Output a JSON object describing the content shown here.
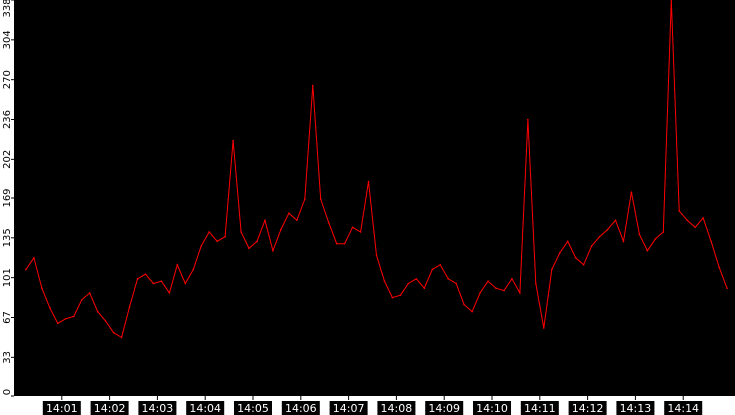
{
  "chart_data": {
    "type": "line",
    "title": "",
    "xlabel": "",
    "ylabel": "",
    "ylim": [
      0,
      338
    ],
    "yticks": [
      "0",
      "33",
      "67",
      "101",
      "135",
      "169",
      "202",
      "236",
      "270",
      "304",
      "338"
    ],
    "xticks": [
      "14:01",
      "14:02",
      "14:03",
      "14:04",
      "14:05",
      "14:06",
      "14:07",
      "14:08",
      "14:09",
      "14:10",
      "14:11",
      "14:12",
      "14:13",
      "14:14"
    ],
    "grid": false,
    "colors": {
      "background": "#ffffff",
      "axis_bg": "#000000",
      "line": "#ff0000"
    },
    "series": [
      {
        "x": [
          "14:00:15",
          "14:00:25",
          "14:00:35",
          "14:00:45",
          "14:00:55",
          "14:01:05",
          "14:01:15",
          "14:01:25",
          "14:01:35",
          "14:01:45",
          "14:01:55",
          "14:02:05",
          "14:02:15",
          "14:02:25",
          "14:02:35",
          "14:02:45",
          "14:02:55",
          "14:03:05",
          "14:03:15",
          "14:03:25",
          "14:03:35",
          "14:03:45",
          "14:03:55",
          "14:04:05",
          "14:04:15",
          "14:04:25",
          "14:04:35",
          "14:04:45",
          "14:04:55",
          "14:05:05",
          "14:05:15",
          "14:05:25",
          "14:05:35",
          "14:05:45",
          "14:05:55",
          "14:06:05",
          "14:06:15",
          "14:06:25",
          "14:06:35",
          "14:06:45",
          "14:06:55",
          "14:07:05",
          "14:07:15",
          "14:07:25",
          "14:07:35",
          "14:07:45",
          "14:07:55",
          "14:08:05",
          "14:08:15",
          "14:08:25",
          "14:08:35",
          "14:08:45",
          "14:08:55",
          "14:09:05",
          "14:09:15",
          "14:09:25",
          "14:09:35",
          "14:09:45",
          "14:09:55",
          "14:10:05",
          "14:10:15",
          "14:10:25",
          "14:10:35",
          "14:10:45",
          "14:10:55",
          "14:11:05",
          "14:11:15",
          "14:11:25",
          "14:11:35",
          "14:11:45",
          "14:11:55",
          "14:12:05",
          "14:12:15",
          "14:12:25",
          "14:12:35",
          "14:12:45",
          "14:12:55",
          "14:13:05",
          "14:13:15",
          "14:13:25",
          "14:13:35",
          "14:13:45",
          "14:13:55",
          "14:14:05",
          "14:14:15",
          "14:14:25",
          "14:14:35",
          "14:14:45",
          "14:14:55"
        ],
        "y": [
          108,
          118,
          92,
          75,
          62,
          66,
          68,
          82,
          88,
          72,
          64,
          54,
          50,
          76,
          100,
          104,
          96,
          98,
          88,
          112,
          96,
          108,
          128,
          140,
          132,
          136,
          218,
          140,
          126,
          132,
          150,
          124,
          142,
          156,
          150,
          168,
          265,
          168,
          148,
          130,
          130,
          144,
          140,
          183,
          120,
          98,
          84,
          86,
          96,
          100,
          92,
          108,
          112,
          100,
          96,
          78,
          72,
          88,
          98,
          92,
          90,
          100,
          88,
          236,
          96,
          58,
          108,
          122,
          132,
          118,
          112,
          128,
          136,
          142,
          150,
          132,
          174,
          138,
          124,
          134,
          140,
          338,
          158,
          150,
          144,
          152,
          132,
          110,
          92
        ]
      }
    ]
  }
}
